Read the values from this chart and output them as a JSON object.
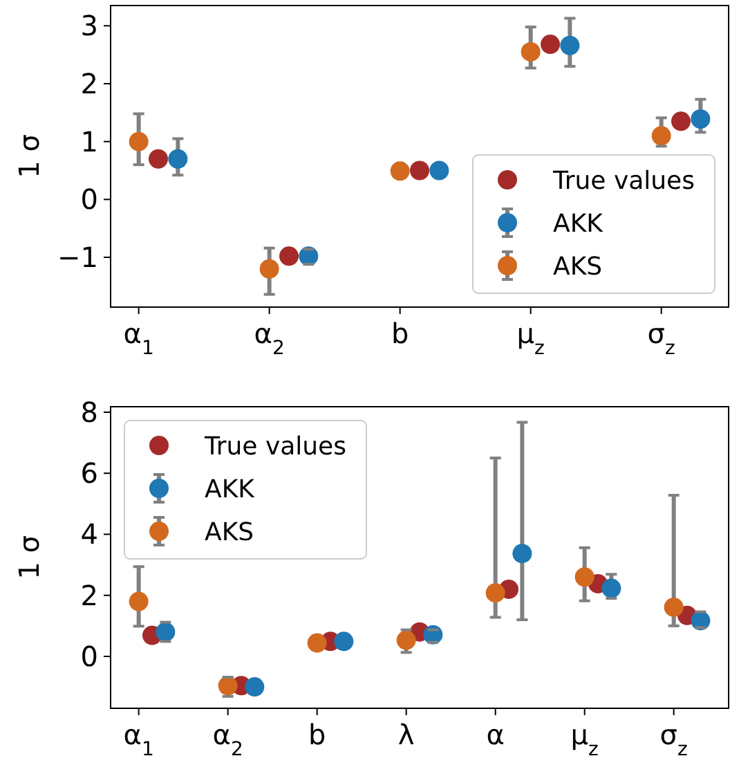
{
  "chart_data": [
    {
      "type": "scatter",
      "ylabel": "1 σ",
      "categories": [
        "α$_{1}$",
        "α$_{2}$",
        "b",
        "μ$_{z}$",
        "σ$_{z}$"
      ],
      "ylim": [
        -1.86,
        3.35
      ],
      "yticks": [
        {
          "value": -1,
          "label": "−1"
        },
        0,
        1,
        2,
        3
      ],
      "legend": "bottom right",
      "marker": "circle",
      "grid": false,
      "series": [
        {
          "name": "True values",
          "color": "#a52a2a",
          "values": [
            0.7,
            -0.98,
            0.5,
            2.68,
            1.35
          ]
        },
        {
          "name": "AKK",
          "color": "#1f77b4",
          "values": [
            0.7,
            -0.98,
            0.5,
            2.66,
            1.39
          ],
          "errors": [
            [
              0.42,
              1.05
            ],
            [
              -1.12,
              -0.86
            ],
            null,
            [
              2.3,
              3.13
            ],
            [
              1.16,
              1.73
            ]
          ]
        },
        {
          "name": "AKS",
          "color": "#d2691e",
          "values": [
            1.0,
            -1.2,
            0.49,
            2.55,
            1.1
          ],
          "errors": [
            [
              0.6,
              1.48
            ],
            [
              -1.64,
              -0.84
            ],
            null,
            [
              2.27,
              2.98
            ],
            [
              0.92,
              1.41
            ]
          ]
        }
      ]
    },
    {
      "type": "scatter",
      "ylabel": "1 σ",
      "categories": [
        "α$_{1}$",
        "α$_{2}$",
        "b",
        "λ",
        "α",
        "μ$_{z}$",
        "σ$_{z}$"
      ],
      "ylim": [
        -1.7,
        8.18
      ],
      "yticks": [
        0,
        2,
        4,
        6,
        8
      ],
      "legend": "top left",
      "marker": "circle",
      "grid": false,
      "series": [
        {
          "name": "True values",
          "color": "#a52a2a",
          "values": [
            0.69,
            -0.96,
            0.49,
            0.8,
            2.2,
            2.38,
            1.34
          ]
        },
        {
          "name": "AKK",
          "color": "#1f77b4",
          "values": [
            0.8,
            -1.0,
            0.49,
            0.71,
            3.37,
            2.23,
            1.17
          ],
          "errors": [
            [
              0.49,
              1.12
            ],
            null,
            null,
            [
              0.46,
              0.87
            ],
            [
              1.2,
              7.67
            ],
            [
              1.9,
              2.69
            ],
            [
              0.94,
              1.46
            ]
          ]
        },
        {
          "name": "AKS",
          "color": "#d2691e",
          "values": [
            1.8,
            -0.96,
            0.44,
            0.53,
            2.08,
            2.6,
            1.61
          ],
          "errors": [
            [
              0.99,
              2.94
            ],
            [
              -1.31,
              -0.68
            ],
            null,
            [
              0.13,
              0.87
            ],
            [
              1.28,
              6.5
            ],
            [
              1.82,
              3.56
            ],
            [
              1.0,
              5.28
            ]
          ]
        }
      ]
    }
  ]
}
